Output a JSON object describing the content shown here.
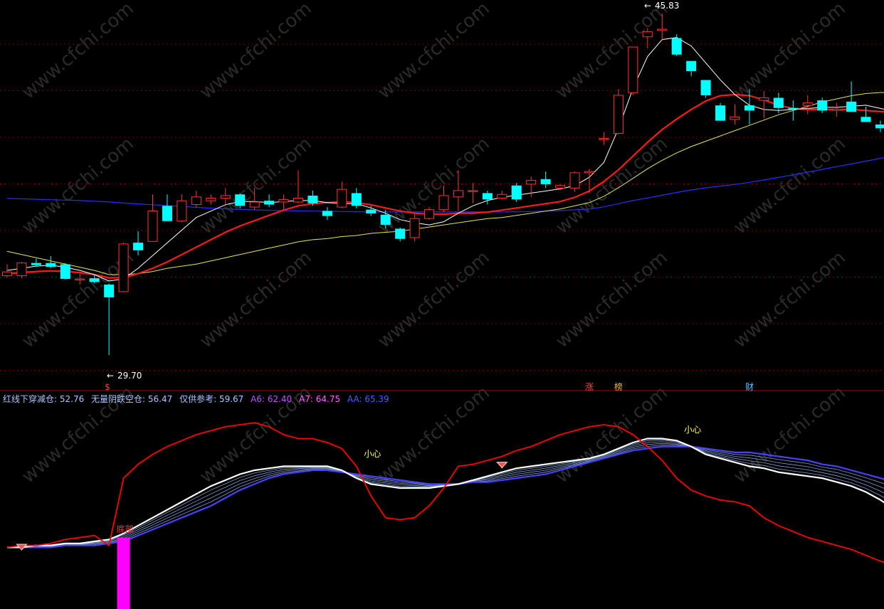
{
  "colors": {
    "background": "#000000",
    "grid": "#7a0000",
    "divider": "#aa0000",
    "candle_up": "#ff3232",
    "candle_down": "#00ffff",
    "ma_short": "#ffffff",
    "ma_red": "#ff1a1a",
    "ma_mid": "#e6e64a",
    "ma_long": "#2a2aff",
    "osc_red": "#ff0000",
    "osc_white": "#ffffff",
    "osc_blue": "#4a40ff",
    "osc_thin": "#7f9fd0",
    "bottom_bar": "#ff00ff",
    "legend_text": "#a8c8ff",
    "legend_a6": "#c050ff",
    "legend_a7": "#ff60ff",
    "legend_aa": "#4060ff",
    "watermark": "#2a2a2a"
  },
  "price_panel": {
    "low_label": "29.70",
    "high_label": "45.83",
    "markers": [
      {
        "text": "$",
        "color": "#ff4040",
        "index": 7
      },
      {
        "text": "涨",
        "color": "#ff4040",
        "index": 40
      },
      {
        "text": "榜",
        "color": "#ffaa30",
        "index": 42
      },
      {
        "text": "财",
        "color": "#60c0ff",
        "index": 51
      }
    ]
  },
  "indicator_panel": {
    "legend": [
      {
        "key": "hx",
        "text": "红线下穿减仓: 52.76",
        "color": "#a8c8ff"
      },
      {
        "key": "wl",
        "text": "无量阴跌空仓: 56.47",
        "color": "#a8c8ff"
      },
      {
        "key": "ref",
        "text": "仅供参考: 59.67",
        "color": "#a8c8ff"
      },
      {
        "key": "a6",
        "text": "A6: 62.40",
        "color": "#c050ff"
      },
      {
        "key": "a7",
        "text": "A7: 64.75",
        "color": "#ff60ff"
      },
      {
        "key": "aa",
        "text": "AA: 65.39",
        "color": "#4060ff"
      }
    ],
    "labels": [
      {
        "text": "底部",
        "color": "#ff3030",
        "index": 8
      },
      {
        "text": "小心",
        "color": "#ffff40",
        "index": 25
      },
      {
        "text": "小心",
        "color": "#ffff40",
        "index": 47
      }
    ]
  },
  "chart_data": [
    {
      "type": "candlestick",
      "title": "",
      "ylim": [
        29.0,
        46.2
      ],
      "candles": [
        {
          "o": 33.45,
          "h": 33.99,
          "l": 33.35,
          "c": 33.63
        },
        {
          "o": 33.45,
          "h": 34.11,
          "l": 33.33,
          "c": 34.05
        },
        {
          "o": 34.05,
          "h": 34.26,
          "l": 33.87,
          "c": 33.95
        },
        {
          "o": 34.05,
          "h": 34.38,
          "l": 33.81,
          "c": 33.87
        },
        {
          "o": 33.99,
          "h": 34.05,
          "l": 33.27,
          "c": 33.3
        },
        {
          "o": 33.27,
          "h": 33.57,
          "l": 33.03,
          "c": 33.3
        },
        {
          "o": 33.33,
          "h": 33.51,
          "l": 33.09,
          "c": 33.15
        },
        {
          "o": 33.03,
          "h": 33.09,
          "l": 29.7,
          "c": 32.43
        },
        {
          "o": 32.7,
          "h": 35.01,
          "l": 32.67,
          "c": 34.95
        },
        {
          "o": 35.01,
          "h": 35.55,
          "l": 34.41,
          "c": 34.65
        },
        {
          "o": 35.07,
          "h": 37.29,
          "l": 35.07,
          "c": 36.51
        },
        {
          "o": 36.75,
          "h": 37.29,
          "l": 36.03,
          "c": 36.03
        },
        {
          "o": 36.03,
          "h": 37.29,
          "l": 35.97,
          "c": 36.99
        },
        {
          "o": 36.81,
          "h": 37.47,
          "l": 36.69,
          "c": 37.17
        },
        {
          "o": 36.99,
          "h": 37.29,
          "l": 36.81,
          "c": 37.11
        },
        {
          "o": 37.11,
          "h": 37.59,
          "l": 36.81,
          "c": 37.23
        },
        {
          "o": 37.29,
          "h": 37.35,
          "l": 36.63,
          "c": 36.75
        },
        {
          "o": 36.69,
          "h": 37.59,
          "l": 36.57,
          "c": 36.93
        },
        {
          "o": 36.99,
          "h": 37.29,
          "l": 36.69,
          "c": 36.81
        },
        {
          "o": 36.93,
          "h": 37.29,
          "l": 36.57,
          "c": 37.05
        },
        {
          "o": 36.93,
          "h": 38.43,
          "l": 36.87,
          "c": 37.11
        },
        {
          "o": 37.23,
          "h": 37.47,
          "l": 36.75,
          "c": 36.87
        },
        {
          "o": 36.51,
          "h": 36.69,
          "l": 36.09,
          "c": 36.27
        },
        {
          "o": 36.69,
          "h": 37.89,
          "l": 36.63,
          "c": 37.53
        },
        {
          "o": 37.35,
          "h": 37.59,
          "l": 36.63,
          "c": 36.75
        },
        {
          "o": 36.57,
          "h": 36.75,
          "l": 36.27,
          "c": 36.39
        },
        {
          "o": 36.33,
          "h": 36.57,
          "l": 35.67,
          "c": 35.85
        },
        {
          "o": 35.67,
          "h": 35.73,
          "l": 35.07,
          "c": 35.19
        },
        {
          "o": 35.25,
          "h": 36.39,
          "l": 35.07,
          "c": 36.15
        },
        {
          "o": 36.15,
          "h": 36.69,
          "l": 36.09,
          "c": 36.57
        },
        {
          "o": 36.57,
          "h": 37.71,
          "l": 36.45,
          "c": 37.23
        },
        {
          "o": 37.17,
          "h": 38.43,
          "l": 36.51,
          "c": 37.47
        },
        {
          "o": 37.47,
          "h": 37.83,
          "l": 36.87,
          "c": 37.47
        },
        {
          "o": 37.35,
          "h": 37.47,
          "l": 36.81,
          "c": 37.05
        },
        {
          "o": 37.11,
          "h": 37.47,
          "l": 37.05,
          "c": 37.29
        },
        {
          "o": 37.71,
          "h": 37.83,
          "l": 36.93,
          "c": 37.05
        },
        {
          "o": 37.77,
          "h": 38.13,
          "l": 37.17,
          "c": 37.95
        },
        {
          "o": 38.01,
          "h": 38.37,
          "l": 37.59,
          "c": 37.77
        },
        {
          "o": 37.59,
          "h": 37.77,
          "l": 37.47,
          "c": 37.71
        },
        {
          "o": 37.59,
          "h": 38.37,
          "l": 37.41,
          "c": 38.31
        },
        {
          "o": 38.31,
          "h": 38.49,
          "l": 37.35,
          "c": 38.37
        },
        {
          "o": 39.93,
          "h": 40.23,
          "l": 39.63,
          "c": 39.93
        },
        {
          "o": 40.17,
          "h": 42.27,
          "l": 40.11,
          "c": 41.97
        },
        {
          "o": 42.09,
          "h": 44.25,
          "l": 41.97,
          "c": 44.25
        },
        {
          "o": 44.73,
          "h": 45.15,
          "l": 44.19,
          "c": 44.97
        },
        {
          "o": 45.03,
          "h": 45.83,
          "l": 44.55,
          "c": 45.09
        },
        {
          "o": 44.67,
          "h": 44.85,
          "l": 43.83,
          "c": 43.89
        },
        {
          "o": 43.59,
          "h": 43.59,
          "l": 42.87,
          "c": 43.11
        },
        {
          "o": 42.69,
          "h": 42.69,
          "l": 41.85,
          "c": 41.97
        },
        {
          "o": 41.49,
          "h": 41.61,
          "l": 40.77,
          "c": 40.77
        },
        {
          "o": 40.83,
          "h": 41.55,
          "l": 40.59,
          "c": 40.95
        },
        {
          "o": 41.49,
          "h": 42.27,
          "l": 40.59,
          "c": 41.25
        },
        {
          "o": 41.73,
          "h": 42.15,
          "l": 40.89,
          "c": 41.85
        },
        {
          "o": 41.85,
          "h": 42.09,
          "l": 41.13,
          "c": 41.37
        },
        {
          "o": 41.37,
          "h": 41.73,
          "l": 40.77,
          "c": 41.31
        },
        {
          "o": 41.49,
          "h": 41.97,
          "l": 41.07,
          "c": 41.61
        },
        {
          "o": 41.73,
          "h": 41.85,
          "l": 41.13,
          "c": 41.25
        },
        {
          "o": 41.25,
          "h": 41.61,
          "l": 40.95,
          "c": 41.31
        },
        {
          "o": 41.67,
          "h": 42.63,
          "l": 41.25,
          "c": 41.19
        },
        {
          "o": 40.95,
          "h": 41.43,
          "l": 40.71,
          "c": 40.71
        },
        {
          "o": 40.59,
          "h": 40.77,
          "l": 40.23,
          "c": 40.41
        },
        {
          "o": 40.77,
          "h": 41.07,
          "l": 40.65,
          "c": 40.83
        }
      ],
      "ma_white": [
        33.7,
        33.8,
        33.9,
        33.95,
        33.85,
        33.7,
        33.5,
        33.2,
        33.3,
        33.8,
        34.4,
        35.0,
        35.6,
        36.2,
        36.5,
        36.8,
        36.95,
        36.95,
        36.9,
        36.95,
        37.0,
        37.0,
        36.9,
        36.85,
        36.85,
        36.65,
        36.4,
        36.1,
        35.95,
        35.85,
        36.0,
        36.4,
        36.75,
        37.0,
        37.15,
        37.25,
        37.35,
        37.45,
        37.55,
        37.7,
        38.1,
        38.8,
        40.4,
        42.3,
        43.8,
        44.6,
        44.7,
        44.3,
        43.5,
        42.7,
        42.0,
        41.5,
        41.3,
        41.25,
        41.3,
        41.35,
        41.4,
        41.4,
        41.45,
        41.5,
        41.35,
        41.2
      ],
      "ma_red": [
        33.55,
        33.6,
        33.65,
        33.68,
        33.65,
        33.6,
        33.5,
        33.35,
        33.35,
        33.55,
        33.8,
        34.1,
        34.45,
        34.8,
        35.15,
        35.5,
        35.8,
        36.05,
        36.3,
        36.55,
        36.75,
        36.85,
        36.9,
        36.95,
        36.9,
        36.8,
        36.65,
        36.5,
        36.4,
        36.35,
        36.35,
        36.4,
        36.4,
        36.45,
        36.55,
        36.65,
        36.75,
        36.85,
        36.95,
        37.15,
        37.45,
        37.9,
        38.45,
        39.1,
        39.75,
        40.35,
        40.85,
        41.3,
        41.7,
        41.95,
        42.0,
        41.95,
        41.75,
        41.5,
        41.35,
        41.3,
        41.3,
        41.3,
        41.3,
        41.25,
        41.2,
        41.15
      ],
      "ma_yellow": [
        34.6,
        34.45,
        34.3,
        34.15,
        34.0,
        33.85,
        33.7,
        33.5,
        33.5,
        33.55,
        33.65,
        33.8,
        33.9,
        34.0,
        34.15,
        34.3,
        34.45,
        34.6,
        34.75,
        34.9,
        35.05,
        35.15,
        35.2,
        35.3,
        35.35,
        35.45,
        35.5,
        35.55,
        35.65,
        35.75,
        35.85,
        35.95,
        36.05,
        36.15,
        36.2,
        36.3,
        36.4,
        36.5,
        36.6,
        36.75,
        36.9,
        37.2,
        37.6,
        38.05,
        38.5,
        38.9,
        39.25,
        39.55,
        39.8,
        40.05,
        40.3,
        40.55,
        40.8,
        41.05,
        41.25,
        41.45,
        41.65,
        41.8,
        41.95,
        42.05,
        42.1,
        42.1
      ],
      "ma_blue": [
        37.1,
        37.08,
        37.06,
        37.04,
        37.02,
        37.0,
        36.97,
        36.93,
        36.88,
        36.84,
        36.8,
        36.76,
        36.72,
        36.68,
        36.64,
        36.61,
        36.58,
        36.56,
        36.54,
        36.52,
        36.51,
        36.5,
        36.49,
        36.48,
        36.47,
        36.46,
        36.46,
        36.46,
        36.46,
        36.46,
        36.46,
        36.46,
        36.46,
        36.46,
        36.46,
        36.47,
        36.48,
        36.5,
        36.53,
        36.56,
        36.6,
        36.7,
        36.85,
        37.0,
        37.12,
        37.25,
        37.38,
        37.5,
        37.6,
        37.68,
        37.76,
        37.86,
        37.97,
        38.09,
        38.21,
        38.34,
        38.47,
        38.6,
        38.73,
        38.86,
        38.99,
        39.12
      ]
    },
    {
      "type": "line",
      "title": "",
      "ylim": [
        0,
        100
      ],
      "series": [
        {
          "name": "红线下穿减仓",
          "role": "red",
          "values": [
            29,
            30,
            30,
            31,
            33,
            34,
            35,
            30,
            64,
            71,
            76,
            80,
            83,
            86,
            88,
            90,
            91,
            92,
            90,
            86,
            84,
            84,
            82,
            79,
            70,
            55,
            44,
            43,
            44,
            50,
            59,
            70,
            71,
            73,
            75,
            78,
            80,
            83,
            86,
            88,
            90,
            91,
            90,
            86,
            80,
            73,
            64,
            58,
            55,
            53,
            52,
            50,
            44,
            40,
            37,
            34,
            32,
            30,
            28,
            25,
            22,
            20
          ]
        },
        {
          "name": "无量阴跌空仓",
          "role": "white",
          "values": [
            29,
            29,
            30,
            30,
            31,
            31,
            32,
            33,
            36,
            40,
            44,
            48,
            52,
            56,
            60,
            63,
            66,
            68,
            69,
            70,
            70,
            70,
            70,
            68,
            64,
            61,
            60,
            59,
            59,
            59,
            60,
            61,
            63,
            65,
            67,
            69,
            70,
            71,
            72,
            73,
            74,
            76,
            79,
            82,
            84,
            84,
            83,
            80,
            76,
            74,
            72,
            70,
            69,
            67,
            66,
            65,
            64,
            62,
            60,
            57,
            53,
            48
          ]
        },
        {
          "name": "仅供参考",
          "role": "thin"
        },
        {
          "name": "A6",
          "role": "thin"
        },
        {
          "name": "A7",
          "role": "thin"
        },
        {
          "name": "AA",
          "role": "blue",
          "values": [
            29,
            29,
            29,
            29,
            30,
            30,
            30,
            31,
            32,
            35,
            38,
            41,
            44,
            47,
            50,
            54,
            58,
            61,
            64,
            66,
            67,
            68,
            68,
            67,
            66,
            65,
            64,
            63,
            62,
            61,
            61,
            61,
            62,
            62,
            63,
            64,
            65,
            66,
            68,
            70,
            72,
            74,
            76,
            78,
            79,
            80,
            80,
            80,
            79,
            78,
            77,
            77,
            76,
            75,
            74,
            73,
            71,
            70,
            68,
            66,
            64,
            62
          ]
        }
      ],
      "bottom_bar": {
        "index": 8,
        "value": 34
      },
      "diamonds": [
        1,
        34
      ]
    }
  ]
}
